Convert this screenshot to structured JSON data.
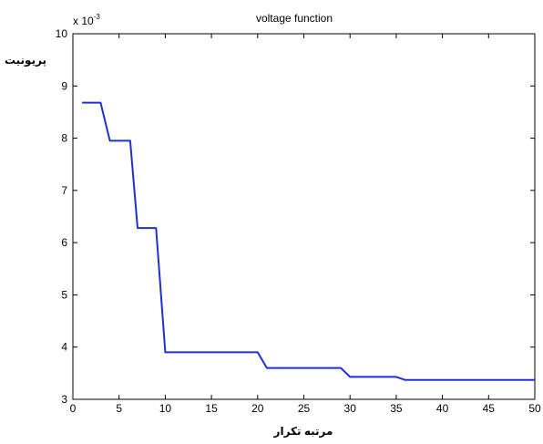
{
  "chart_data": {
    "type": "line",
    "title": "voltage function",
    "xlabel": "مرتبه تکرار",
    "ylabel": "پریونیت",
    "y_multiplier": "x 10",
    "y_multiplier_exp": "-3",
    "xlim": [
      0,
      50
    ],
    "ylim": [
      3,
      10
    ],
    "x_ticks": [
      0,
      5,
      10,
      15,
      20,
      25,
      30,
      35,
      40,
      45,
      50
    ],
    "y_ticks": [
      3,
      4,
      5,
      6,
      7,
      8,
      9,
      10
    ],
    "grid": false,
    "line_color": "#1f2fd6",
    "series": [
      {
        "x": [
          1,
          3,
          4,
          6.2,
          7,
          9,
          10,
          20,
          21,
          29,
          30,
          35,
          36,
          50
        ],
        "y": [
          8.68,
          8.68,
          7.95,
          7.95,
          6.28,
          6.28,
          3.9,
          3.9,
          3.6,
          3.6,
          3.43,
          3.43,
          3.37,
          3.37
        ]
      }
    ]
  }
}
